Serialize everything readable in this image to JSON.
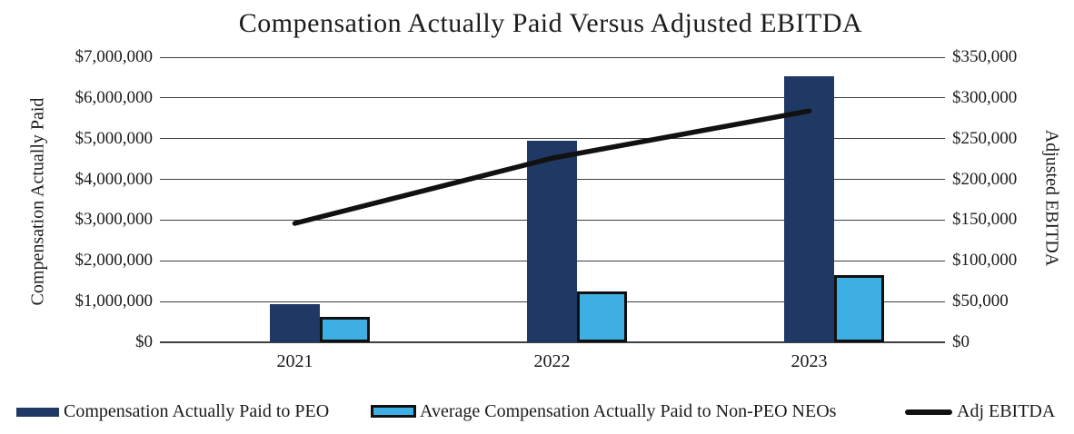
{
  "title": "Compensation Actually Paid Versus Adjusted EBITDA",
  "left_axis": {
    "title": "Compensation Actually Paid",
    "tick_labels": [
      "$7,000,000",
      "$6,000,000",
      "$5,000,000",
      "$4,000,000",
      "$3,000,000",
      "$2,000,000",
      "$1,000,000",
      "$0"
    ]
  },
  "right_axis": {
    "title": "Adjusted EBITDA",
    "tick_labels": [
      "$350,000",
      "$300,000",
      "$250,000",
      "$200,000",
      "$150,000",
      "$100,000",
      "$50,000",
      "$0"
    ]
  },
  "chart_data": {
    "type": "combo",
    "categories": [
      "2021",
      "2022",
      "2023"
    ],
    "series": [
      {
        "name": "Compensation Actually Paid to PEO",
        "type": "bar",
        "axis": "left",
        "color": "#1f3864",
        "values": [
          935000,
          4950000,
          6530000
        ]
      },
      {
        "name": "Average Compensation Actually Paid to Non-PEO NEOs",
        "type": "bar",
        "axis": "left",
        "color": "#3dafe4",
        "border_color": "#111111",
        "values": [
          620000,
          1240000,
          1650000
        ]
      },
      {
        "name": "Adj EBITDA",
        "type": "line",
        "axis": "right",
        "color": "#111111",
        "values": [
          146000,
          226000,
          284000
        ]
      }
    ],
    "title": "Compensation Actually Paid Versus Adjusted EBITDA",
    "xlabel": "",
    "ylabel_left": "Compensation Actually Paid",
    "ylabel_right": "Adjusted EBITDA",
    "left_ylim": [
      0,
      7000000
    ],
    "right_ylim": [
      0,
      350000
    ],
    "grid": true,
    "gridline_color": "#3f3f3f",
    "legend_position": "bottom"
  }
}
